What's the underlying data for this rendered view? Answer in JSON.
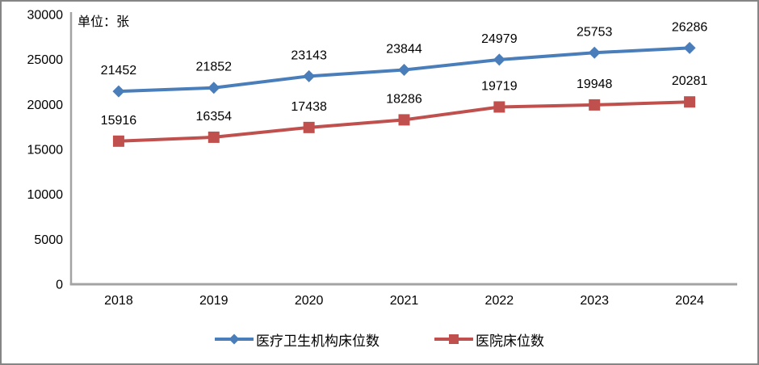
{
  "frame": {
    "background": "#ffffff",
    "border_color": "#858585"
  },
  "chart_data": {
    "type": "line",
    "title": "",
    "unit_label": "单位：张",
    "categories": [
      "2018",
      "2019",
      "2020",
      "2021",
      "2022",
      "2023",
      "2024"
    ],
    "series": [
      {
        "name": "医疗卫生机构床位数",
        "color": "#4A7EBB",
        "marker": "diamond",
        "values": [
          21452,
          21852,
          23143,
          23844,
          24979,
          25753,
          26286
        ]
      },
      {
        "name": "医院床位数",
        "color": "#C0504D",
        "marker": "square",
        "values": [
          15916,
          16354,
          17438,
          18286,
          19719,
          19948,
          20281
        ]
      }
    ],
    "ylim": [
      0,
      30000
    ],
    "y_ticks": [
      0,
      5000,
      10000,
      15000,
      20000,
      25000,
      30000
    ],
    "grid": false,
    "legend_position": "bottom",
    "axis_color": "#a3a3a3",
    "label_color": "#000000",
    "tick_font_size": 16,
    "data_label_font_size": 16
  }
}
